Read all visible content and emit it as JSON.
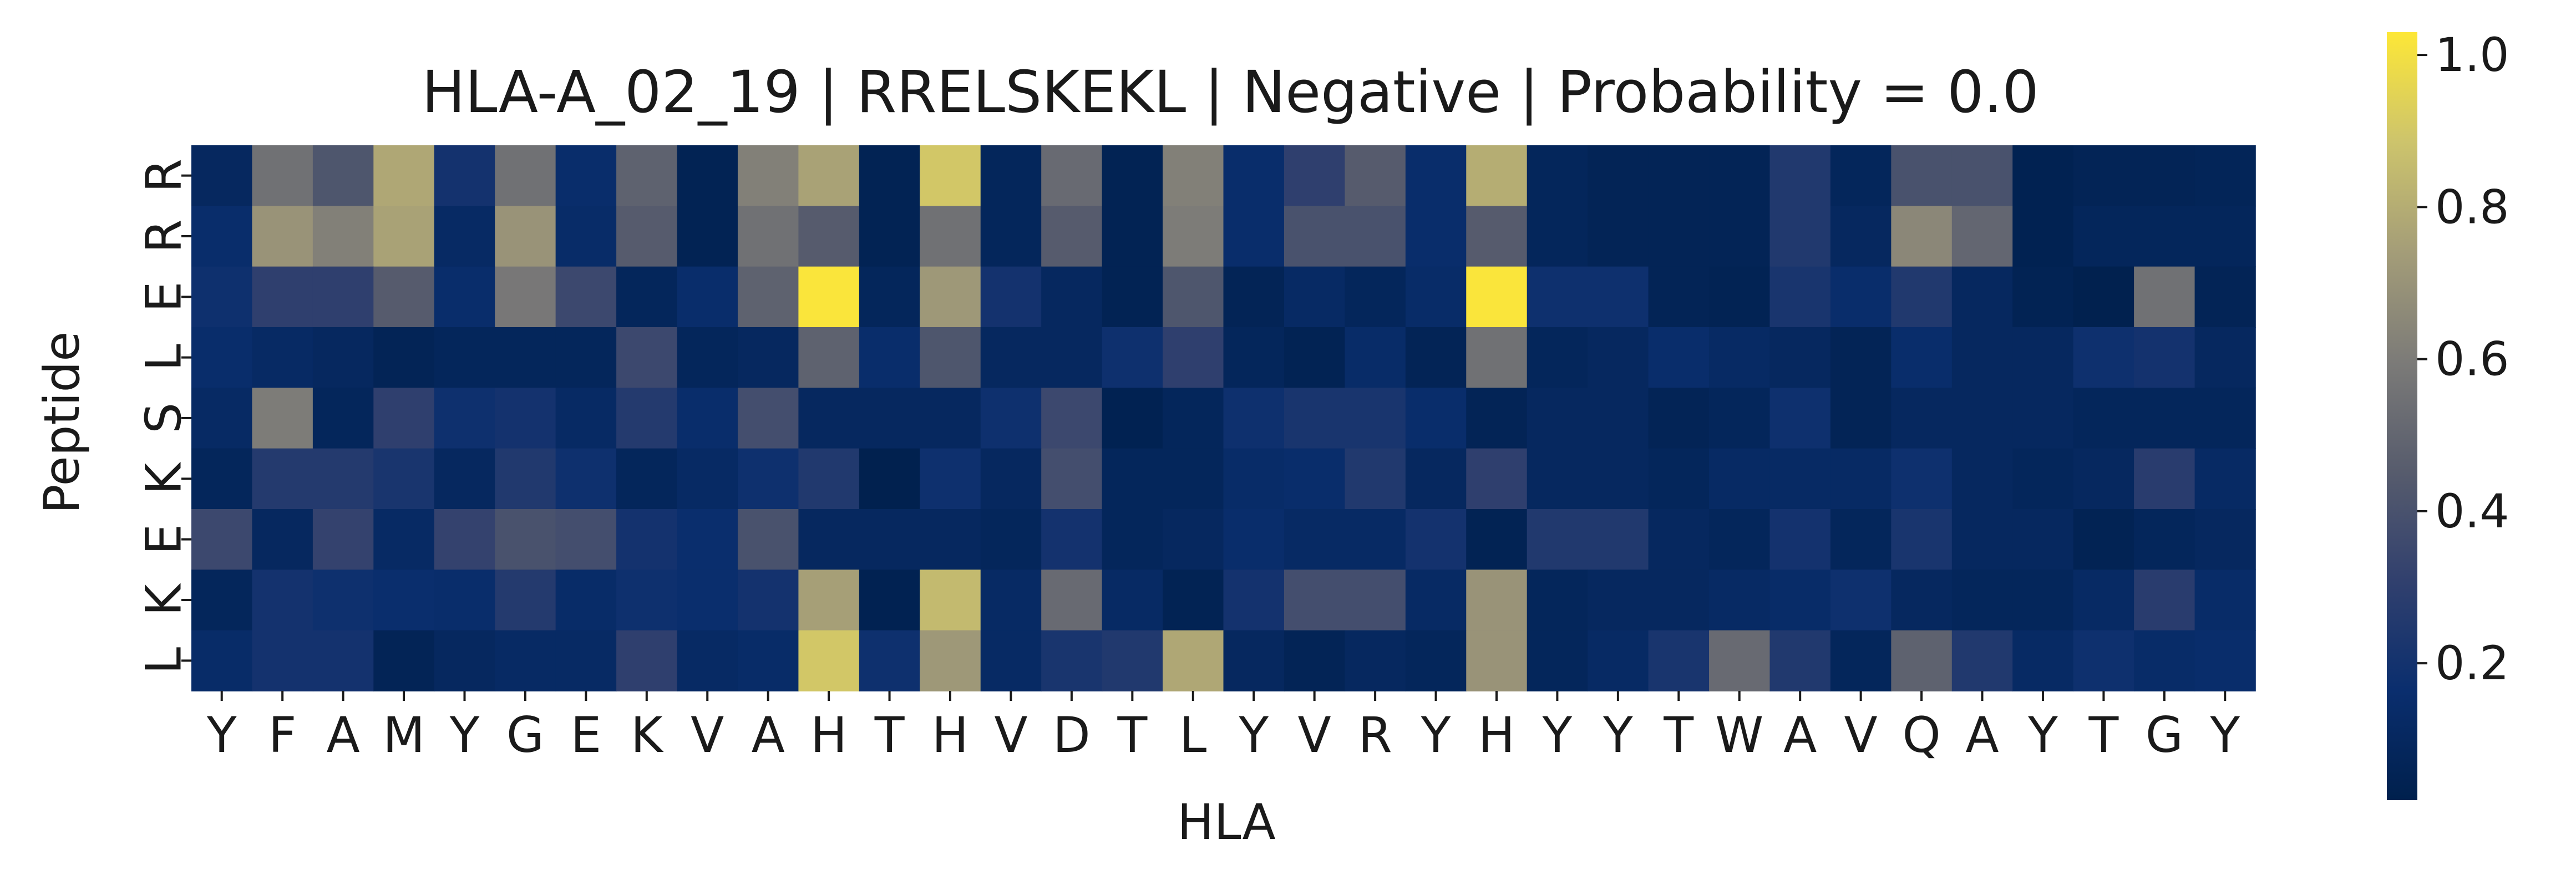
{
  "chart_data": {
    "type": "heatmap",
    "title": "HLA-A_02_19 | RRELSKEKL | Negative | Probability = 0.0",
    "xlabel": "HLA",
    "ylabel": "Peptide",
    "x_categories": [
      "Y",
      "F",
      "A",
      "M",
      "Y",
      "G",
      "E",
      "K",
      "V",
      "A",
      "H",
      "T",
      "H",
      "V",
      "D",
      "T",
      "L",
      "Y",
      "V",
      "R",
      "Y",
      "H",
      "Y",
      "Y",
      "T",
      "W",
      "A",
      "V",
      "Q",
      "A",
      "Y",
      "T",
      "G",
      "Y"
    ],
    "y_categories": [
      "R",
      "R",
      "E",
      "L",
      "S",
      "K",
      "E",
      "K",
      "L"
    ],
    "values": [
      [
        0.1,
        0.55,
        0.42,
        0.78,
        0.2,
        0.55,
        0.15,
        0.48,
        0.05,
        0.62,
        0.76,
        0.05,
        0.9,
        0.08,
        0.52,
        0.05,
        0.62,
        0.15,
        0.3,
        0.45,
        0.15,
        0.8,
        0.08,
        0.06,
        0.06,
        0.06,
        0.25,
        0.08,
        0.4,
        0.4,
        0.04,
        0.06,
        0.06,
        0.07
      ],
      [
        0.15,
        0.7,
        0.62,
        0.76,
        0.12,
        0.7,
        0.14,
        0.45,
        0.05,
        0.55,
        0.45,
        0.05,
        0.55,
        0.08,
        0.45,
        0.05,
        0.6,
        0.15,
        0.4,
        0.4,
        0.15,
        0.45,
        0.08,
        0.06,
        0.06,
        0.06,
        0.25,
        0.1,
        0.65,
        0.5,
        0.04,
        0.08,
        0.08,
        0.08
      ],
      [
        0.18,
        0.3,
        0.3,
        0.45,
        0.15,
        0.58,
        0.35,
        0.08,
        0.15,
        0.48,
        1.02,
        0.08,
        0.72,
        0.2,
        0.1,
        0.05,
        0.42,
        0.06,
        0.12,
        0.08,
        0.14,
        1.02,
        0.18,
        0.18,
        0.06,
        0.05,
        0.22,
        0.15,
        0.25,
        0.1,
        0.05,
        0.03,
        0.55,
        0.06
      ],
      [
        0.15,
        0.12,
        0.1,
        0.06,
        0.08,
        0.08,
        0.08,
        0.35,
        0.08,
        0.1,
        0.48,
        0.15,
        0.42,
        0.1,
        0.1,
        0.18,
        0.3,
        0.08,
        0.05,
        0.14,
        0.06,
        0.55,
        0.08,
        0.1,
        0.15,
        0.12,
        0.1,
        0.06,
        0.15,
        0.1,
        0.1,
        0.18,
        0.2,
        0.1
      ],
      [
        0.12,
        0.6,
        0.08,
        0.3,
        0.18,
        0.2,
        0.12,
        0.26,
        0.15,
        0.38,
        0.1,
        0.1,
        0.1,
        0.18,
        0.35,
        0.04,
        0.08,
        0.18,
        0.22,
        0.22,
        0.15,
        0.06,
        0.1,
        0.1,
        0.06,
        0.08,
        0.18,
        0.06,
        0.1,
        0.1,
        0.1,
        0.08,
        0.08,
        0.08
      ],
      [
        0.08,
        0.26,
        0.26,
        0.22,
        0.1,
        0.25,
        0.18,
        0.08,
        0.12,
        0.18,
        0.25,
        0.03,
        0.18,
        0.1,
        0.38,
        0.08,
        0.08,
        0.14,
        0.15,
        0.25,
        0.1,
        0.3,
        0.1,
        0.1,
        0.08,
        0.12,
        0.12,
        0.12,
        0.18,
        0.1,
        0.08,
        0.1,
        0.28,
        0.12
      ],
      [
        0.35,
        0.1,
        0.32,
        0.12,
        0.32,
        0.4,
        0.38,
        0.2,
        0.16,
        0.4,
        0.1,
        0.1,
        0.1,
        0.08,
        0.2,
        0.08,
        0.1,
        0.15,
        0.12,
        0.12,
        0.2,
        0.05,
        0.25,
        0.25,
        0.1,
        0.08,
        0.2,
        0.08,
        0.22,
        0.1,
        0.1,
        0.05,
        0.08,
        0.1
      ],
      [
        0.08,
        0.2,
        0.18,
        0.16,
        0.15,
        0.26,
        0.14,
        0.18,
        0.16,
        0.2,
        0.75,
        0.04,
        0.85,
        0.12,
        0.52,
        0.12,
        0.05,
        0.2,
        0.38,
        0.38,
        0.12,
        0.7,
        0.08,
        0.1,
        0.1,
        0.12,
        0.14,
        0.18,
        0.1,
        0.08,
        0.08,
        0.12,
        0.28,
        0.14
      ],
      [
        0.14,
        0.2,
        0.2,
        0.06,
        0.1,
        0.12,
        0.12,
        0.3,
        0.12,
        0.14,
        0.9,
        0.18,
        0.72,
        0.12,
        0.22,
        0.25,
        0.78,
        0.1,
        0.06,
        0.1,
        0.08,
        0.7,
        0.08,
        0.12,
        0.22,
        0.52,
        0.25,
        0.08,
        0.48,
        0.25,
        0.12,
        0.18,
        0.14,
        0.15
      ]
    ],
    "colorbar": {
      "min": 0.02,
      "max": 1.03,
      "ticks": [
        0.2,
        0.4,
        0.6,
        0.8,
        1.0
      ],
      "tick_labels": [
        "0.2",
        "0.4",
        "0.6",
        "0.8",
        "1.0"
      ]
    },
    "colormap": "cividis",
    "colormap_stops": [
      "#00204d",
      "#0a2e6e",
      "#31406e",
      "#575c6d",
      "#7c7b78",
      "#a49d78",
      "#cdc46c",
      "#fde737"
    ],
    "grid": false,
    "legend": "colorbar-right"
  }
}
